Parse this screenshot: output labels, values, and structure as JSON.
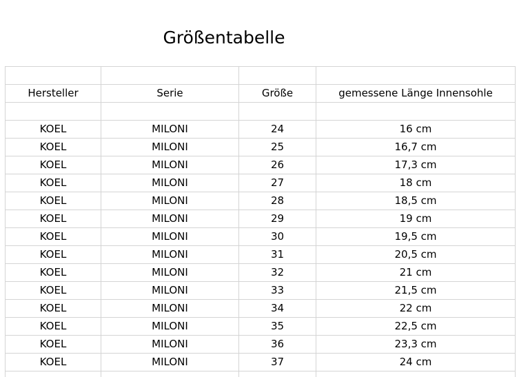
{
  "title": "Größentabelle",
  "headers": [
    "Hersteller",
    "Serie",
    "Größe",
    "gemessene Länge Innensohle"
  ],
  "rows": [
    [
      "KOEL",
      "MILONI",
      "24",
      "16 cm"
    ],
    [
      "KOEL",
      "MILONI",
      "25",
      "16,7 cm"
    ],
    [
      "KOEL",
      "MILONI",
      "26",
      "17,3 cm"
    ],
    [
      "KOEL",
      "MILONI",
      "27",
      "18 cm"
    ],
    [
      "KOEL",
      "MILONI",
      "28",
      "18,5 cm"
    ],
    [
      "KOEL",
      "MILONI",
      "29",
      "19 cm"
    ],
    [
      "KOEL",
      "MILONI",
      "30",
      "19,5 cm"
    ],
    [
      "KOEL",
      "MILONI",
      "31",
      "20,5 cm"
    ],
    [
      "KOEL",
      "MILONI",
      "32",
      "21 cm"
    ],
    [
      "KOEL",
      "MILONI",
      "33",
      "21,5 cm"
    ],
    [
      "KOEL",
      "MILONI",
      "34",
      "22 cm"
    ],
    [
      "KOEL",
      "MILONI",
      "35",
      "22,5 cm"
    ],
    [
      "KOEL",
      "MILONI",
      "36",
      "23,3 cm"
    ],
    [
      "KOEL",
      "MILONI",
      "37",
      "24 cm"
    ]
  ]
}
